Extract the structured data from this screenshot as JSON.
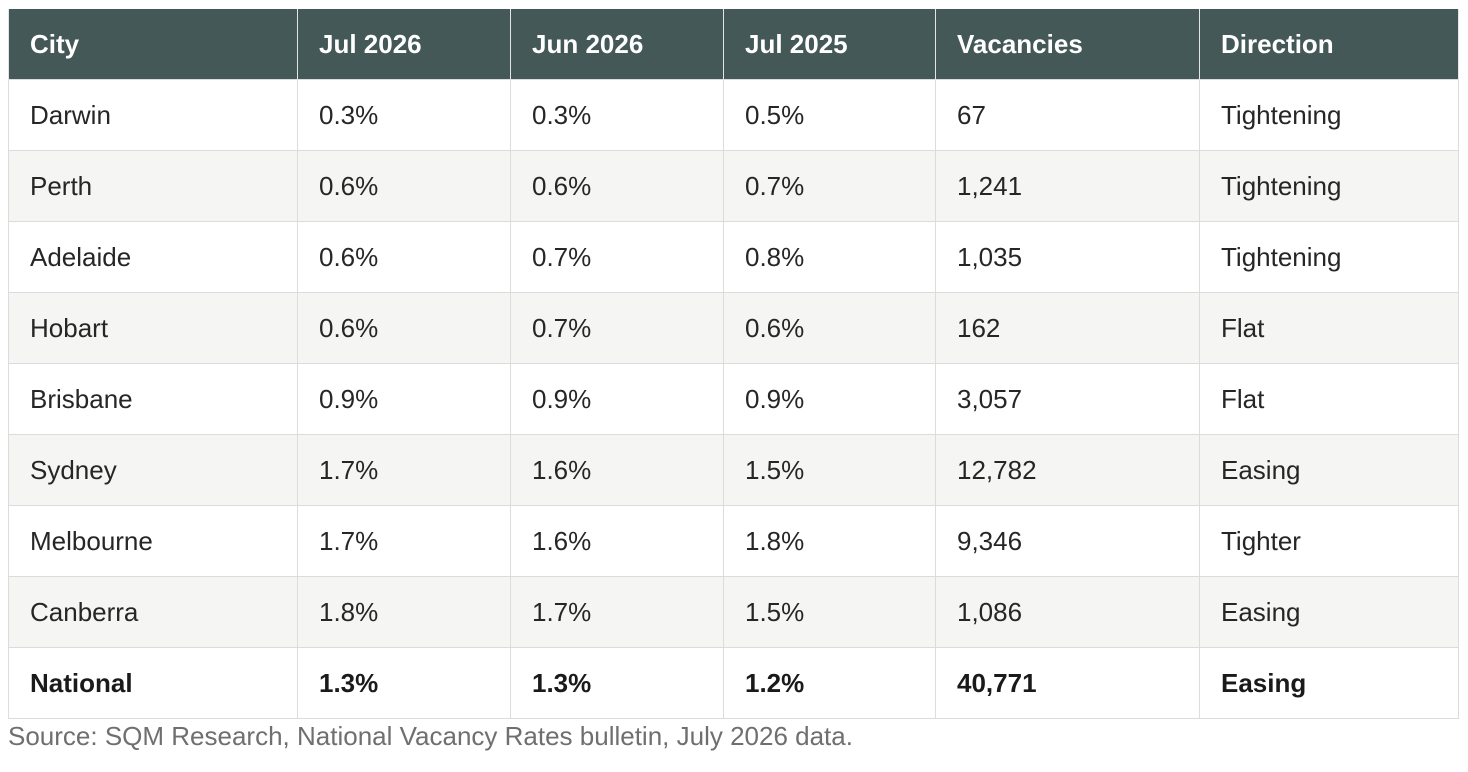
{
  "table": {
    "headers": [
      "City",
      "Jul 2026",
      "Jun 2026",
      "Jul 2025",
      "Vacancies",
      "Direction"
    ],
    "rows": [
      [
        "Darwin",
        "0.3%",
        "0.3%",
        "0.5%",
        "67",
        "Tightening"
      ],
      [
        "Perth",
        "0.6%",
        "0.6%",
        "0.7%",
        "1,241",
        "Tightening"
      ],
      [
        "Adelaide",
        "0.6%",
        "0.7%",
        "0.8%",
        "1,035",
        "Tightening"
      ],
      [
        "Hobart",
        "0.6%",
        "0.7%",
        "0.6%",
        "162",
        "Flat"
      ],
      [
        "Brisbane",
        "0.9%",
        "0.9%",
        "0.9%",
        "3,057",
        "Flat"
      ],
      [
        "Sydney",
        "1.7%",
        "1.6%",
        "1.5%",
        "12,782",
        "Easing"
      ],
      [
        "Melbourne",
        "1.7%",
        "1.6%",
        "1.8%",
        "9,346",
        "Tighter"
      ],
      [
        "Canberra",
        "1.8%",
        "1.7%",
        "1.5%",
        "1,086",
        "Easing"
      ],
      [
        "National",
        "1.3%",
        "1.3%",
        "1.2%",
        "40,771",
        "Easing"
      ]
    ]
  },
  "source_note": "Source: SQM Research, National Vacancy Rates bulletin, July 2026 data.",
  "colors": {
    "header_bg": "#445858",
    "header_text": "#ffffff",
    "stripe_bg": "#f5f5f3",
    "border": "#dcdcdc",
    "source_text": "#6f6f6f"
  }
}
